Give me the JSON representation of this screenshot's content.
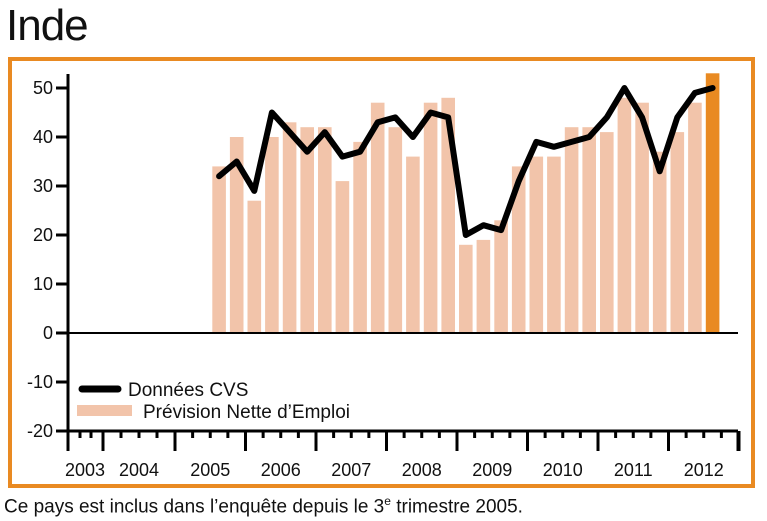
{
  "title": "Inde",
  "footnote": {
    "before": "Ce pays est inclus dans l’enquête depuis le 3",
    "sup": "e",
    "after": " trimestre 2005."
  },
  "colors": {
    "frame": "#e98a22",
    "bars": "#f2c4aa",
    "highlight_bar": "#e98a22",
    "line": "#000000"
  },
  "chart_data": {
    "type": "bar",
    "title": "Inde",
    "xlabel": "",
    "ylabel": "",
    "ylim": [
      -20,
      50
    ],
    "yticks": [
      50,
      40,
      30,
      20,
      10,
      0,
      -10,
      -20
    ],
    "year_labels": [
      "2003",
      "2004",
      "2005",
      "2006",
      "2007",
      "2008",
      "2009",
      "2010",
      "2011",
      "2012"
    ],
    "first_period": "2005 Q3",
    "categories": [
      "2005 Q3",
      "2005 Q4",
      "2006 Q1",
      "2006 Q2",
      "2006 Q3",
      "2006 Q4",
      "2007 Q1",
      "2007 Q2",
      "2007 Q3",
      "2007 Q4",
      "2008 Q1",
      "2008 Q2",
      "2008 Q3",
      "2008 Q4",
      "2009 Q1",
      "2009 Q2",
      "2009 Q3",
      "2009 Q4",
      "2010 Q1",
      "2010 Q2",
      "2010 Q3",
      "2010 Q4",
      "2011 Q1",
      "2011 Q2",
      "2011 Q3",
      "2011 Q4",
      "2012 Q1",
      "2012 Q2",
      "2012 Q3"
    ],
    "series": [
      {
        "name": "Prévision Nette d’Emploi",
        "type": "bar",
        "values": [
          34,
          40,
          27,
          40,
          43,
          42,
          42,
          31,
          39,
          47,
          42,
          36,
          47,
          48,
          18,
          19,
          23,
          34,
          36,
          36,
          42,
          42,
          41,
          48,
          47,
          37,
          41,
          47,
          53
        ],
        "highlight_last": true
      },
      {
        "name": "Données CVS",
        "type": "line",
        "values": [
          32,
          35,
          29,
          45,
          41,
          37,
          41,
          36,
          37,
          43,
          44,
          40,
          45,
          44,
          20,
          22,
          21,
          31,
          39,
          38,
          39,
          40,
          44,
          50,
          44,
          33,
          44,
          49,
          50
        ]
      }
    ],
    "legend": [
      {
        "label": "Données CVS",
        "marker": "line"
      },
      {
        "label": "Prévision Nette d’Emploi",
        "marker": "bar"
      }
    ],
    "legend_position": "bottom-left",
    "grid": false
  }
}
